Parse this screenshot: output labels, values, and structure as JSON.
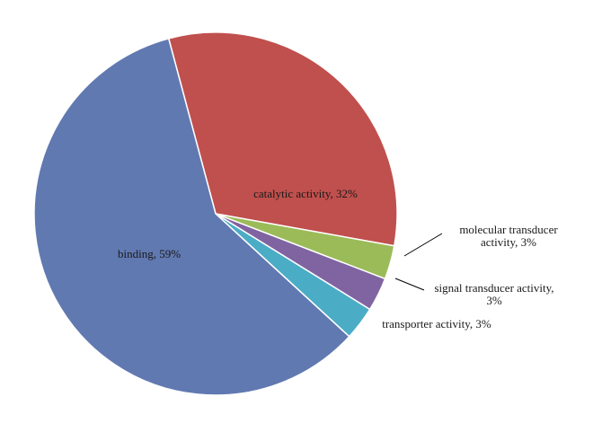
{
  "chart_data": {
    "type": "pie",
    "title": "",
    "legend": "none",
    "slices": [
      {
        "key": "catalytic",
        "label_lines": [
          "catalytic activity, 32%"
        ],
        "value": 32,
        "color": "#c0504d"
      },
      {
        "key": "molecular",
        "label_lines": [
          "molecular transducer",
          "activity, 3%"
        ],
        "value": 3,
        "color": "#9bbb59"
      },
      {
        "key": "signal",
        "label_lines": [
          "signal transducer activity,",
          "3%"
        ],
        "value": 3,
        "color": "#8064a2"
      },
      {
        "key": "transporter",
        "label_lines": [
          "transporter activity, 3%"
        ],
        "value": 3,
        "color": "#4bacc6"
      },
      {
        "key": "binding",
        "label_lines": [
          "binding, 59%"
        ],
        "value": 59,
        "color": "#6179b1"
      }
    ]
  }
}
